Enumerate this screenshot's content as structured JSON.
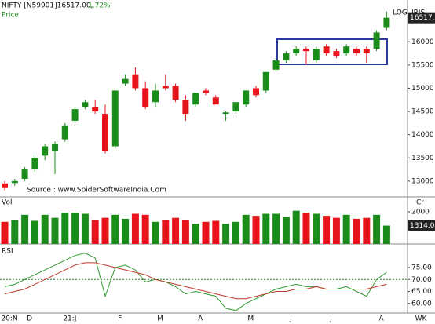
{
  "chart_data": [
    {
      "type": "candlestick",
      "title": "NIFTY [N59901]16517.00,",
      "change": "1.72%",
      "ylabel": "Price",
      "scale_label": "LOG",
      "indicator": "IRIS",
      "annotation": "Source : www.SpiderSoftwareIndia.Com",
      "x_label": "WK",
      "categories": [
        "20:N",
        null,
        "D",
        null,
        null,
        null,
        "21:J",
        null,
        null,
        null,
        null,
        "F",
        null,
        null,
        null,
        "M",
        null,
        null,
        null,
        "A",
        null,
        null,
        null,
        null,
        "M",
        null,
        null,
        null,
        "J",
        null,
        null,
        null,
        "J",
        null,
        null,
        null,
        null,
        "A",
        null
      ],
      "open": [
        12950,
        12960,
        13050,
        13250,
        13550,
        13650,
        13900,
        14300,
        14600,
        14600,
        14450,
        13750,
        15100,
        15300,
        15000,
        14700,
        15050,
        15050,
        14750,
        14650,
        14950,
        14800,
        14450,
        14500,
        14650,
        15000,
        14950,
        15400,
        15600,
        15750,
        15850,
        15600,
        15900,
        15800,
        15750,
        15850,
        15850,
        15850,
        16300
      ],
      "high": [
        13000,
        13050,
        13300,
        13550,
        13800,
        13850,
        14250,
        14600,
        14750,
        14750,
        14650,
        14950,
        15300,
        15450,
        15150,
        15100,
        15300,
        15100,
        14850,
        14900,
        15000,
        14850,
        14500,
        14700,
        14950,
        15050,
        15350,
        15650,
        15800,
        15900,
        15900,
        15900,
        15950,
        15850,
        15950,
        15900,
        15900,
        16250,
        16650
      ],
      "low": [
        12800,
        12900,
        13000,
        13200,
        13450,
        13150,
        13850,
        14250,
        14550,
        14450,
        13600,
        13700,
        15050,
        14950,
        14550,
        14600,
        14950,
        14700,
        14300,
        14600,
        14850,
        14650,
        14300,
        14450,
        14600,
        14800,
        14900,
        15350,
        15550,
        15700,
        15500,
        15550,
        15700,
        15650,
        15700,
        15700,
        15550,
        15800,
        16250
      ],
      "close": [
        12850,
        13000,
        13250,
        13500,
        13750,
        13800,
        14200,
        14550,
        14700,
        14500,
        13650,
        14950,
        15200,
        15000,
        14600,
        14950,
        15000,
        14750,
        14450,
        14900,
        14900,
        14650,
        14480,
        14700,
        14950,
        14850,
        15350,
        15600,
        15750,
        15850,
        15800,
        15850,
        15750,
        15700,
        15900,
        15750,
        15750,
        16200,
        16517
      ],
      "value_labels": [
        null,
        null,
        null,
        null,
        null,
        null,
        null,
        null,
        null,
        null,
        null,
        null,
        null,
        null,
        null,
        null,
        null,
        null,
        null,
        null,
        null,
        null,
        null,
        null,
        null,
        null,
        null,
        null,
        null,
        null,
        null,
        null,
        null,
        null,
        null,
        null,
        null,
        null,
        "16517.00"
      ],
      "up_color": "#1a8c1a",
      "down_color": "#e8141c",
      "ylim": [
        12660,
        16900
      ],
      "yticks": [
        13000,
        13500,
        14000,
        14500,
        15000,
        15500,
        16000
      ]
    },
    {
      "type": "bar",
      "ylabel": "Vol",
      "unit_label": "Cr",
      "values": [
        1500,
        1600,
        1850,
        1550,
        1850,
        1700,
        1950,
        1950,
        1900,
        1600,
        1700,
        1850,
        1650,
        1900,
        1850,
        1500,
        1600,
        1700,
        1600,
        1400,
        1500,
        1550,
        1400,
        1500,
        1850,
        1800,
        1900,
        1900,
        1750,
        2050,
        1950,
        1900,
        1800,
        1700,
        1850,
        1650,
        1700,
        1850,
        1314.02
      ],
      "ylim": [
        400,
        2700
      ],
      "yticks": [
        2000
      ]
    },
    {
      "type": "line",
      "ylabel": "RSI",
      "series": [
        {
          "color": "#2e9a2e",
          "values": [
            67,
            68,
            70,
            72,
            74,
            76,
            78,
            80,
            81,
            79,
            63,
            75,
            76,
            74,
            69,
            70,
            69,
            67,
            64,
            65,
            64,
            63,
            58,
            57,
            60,
            62,
            64,
            66,
            67,
            68,
            67,
            67,
            66,
            66,
            67,
            65,
            63,
            70,
            73
          ]
        },
        {
          "color": "#c0392b",
          "values": [
            64,
            65,
            66,
            68,
            70,
            72,
            74,
            76,
            77,
            77,
            76,
            75,
            74,
            73,
            72,
            70,
            69,
            68,
            67,
            66,
            65,
            64,
            63,
            62,
            62,
            63,
            64,
            65,
            65,
            66,
            66,
            67,
            66,
            66,
            66,
            66,
            66,
            67,
            68
          ]
        }
      ],
      "reference_line": 70,
      "ylim": [
        56,
        84.5
      ],
      "yticks": [
        {
          "value": 60,
          "label": "60.00"
        },
        {
          "value": 65,
          "label": "65.00"
        },
        {
          "value": 70,
          "label": "70.00"
        },
        {
          "value": 75,
          "label": "75.00"
        }
      ]
    }
  ]
}
